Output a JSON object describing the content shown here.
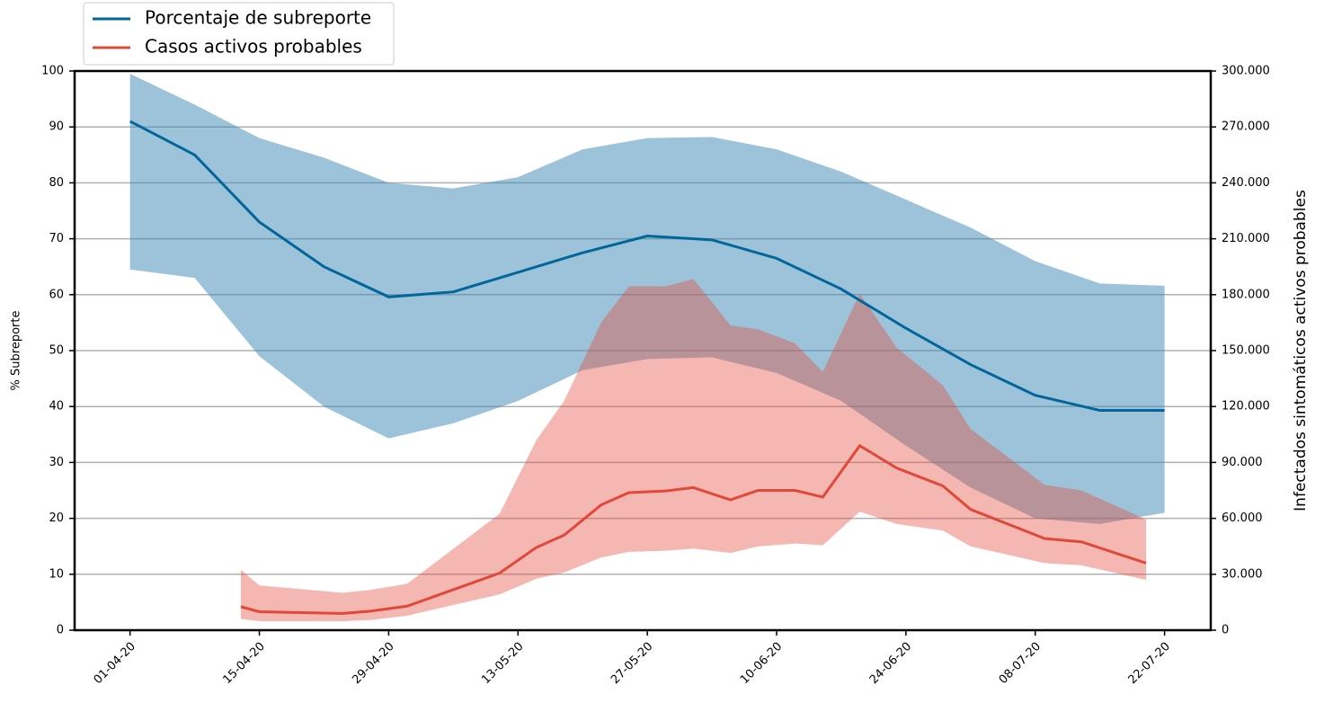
{
  "chart_data": {
    "type": "line-band",
    "y_label": "% Subreporte",
    "y2_label": "Infectados sintomáticos activos probables",
    "xlim": [
      "2020-03-26",
      "2020-07-27"
    ],
    "xticks": [
      {
        "value": "2020-04-01",
        "label": "01-04-20"
      },
      {
        "value": "2020-04-15",
        "label": "15-04-20"
      },
      {
        "value": "2020-04-29",
        "label": "29-04-20"
      },
      {
        "value": "2020-05-13",
        "label": "13-05-20"
      },
      {
        "value": "2020-05-27",
        "label": "27-05-20"
      },
      {
        "value": "2020-06-10",
        "label": "10-06-20"
      },
      {
        "value": "2020-06-24",
        "label": "24-06-20"
      },
      {
        "value": "2020-07-08",
        "label": "08-07-20"
      },
      {
        "value": "2020-07-22",
        "label": "22-07-20"
      }
    ],
    "ylim": [
      0,
      100
    ],
    "yticks": [
      0,
      10,
      20,
      30,
      40,
      50,
      60,
      70,
      80,
      90,
      100
    ],
    "y2lim": [
      0,
      300000
    ],
    "y2ticks": [
      0,
      {
        "value": 30000,
        "label": "30.000"
      },
      {
        "value": 60000,
        "label": "60.000"
      },
      {
        "value": 90000,
        "label": "90.000"
      },
      {
        "value": 120000,
        "label": "120.000"
      },
      {
        "value": 150000,
        "label": "150.000"
      },
      {
        "value": 180000,
        "label": "180.000"
      },
      {
        "value": 210000,
        "label": "210.000"
      },
      {
        "value": 240000,
        "label": "240.000"
      },
      {
        "value": 270000,
        "label": "270.000"
      },
      {
        "value": 300000,
        "label": "300.000"
      }
    ],
    "grid": true,
    "legend": "upper left",
    "series": [
      {
        "name": "Porcentaje de subreporte",
        "color": "#01669a",
        "band_color": "#3a87b3",
        "x": [
          "2020-04-01",
          "2020-04-08",
          "2020-04-15",
          "2020-04-22",
          "2020-04-29",
          "2020-05-06",
          "2020-05-13",
          "2020-05-20",
          "2020-05-27",
          "2020-06-03",
          "2020-06-10",
          "2020-06-17",
          "2020-06-24",
          "2020-07-01",
          "2020-07-08",
          "2020-07-15",
          "2020-07-22"
        ],
        "values": [
          91,
          85,
          73,
          65,
          59.6,
          60.5,
          64,
          67.5,
          70.5,
          69.8,
          66.5,
          61,
          54,
          47.5,
          42,
          39.3,
          39.3
        ],
        "upper": [
          99.5,
          94,
          88,
          84.5,
          80,
          79,
          81,
          86,
          88,
          88.2,
          86,
          82,
          77,
          72,
          66,
          62,
          61.6
        ],
        "lower": [
          64.5,
          63,
          49,
          40,
          34.3,
          37,
          41,
          46.5,
          48.5,
          48.8,
          46,
          41,
          33,
          25.5,
          20,
          19,
          21
        ]
      },
      {
        "name": "Casos activos probables",
        "color": "#e0483a",
        "band_color": "#e54a3c",
        "axis": "y2",
        "x": [
          "2020-04-13",
          "2020-04-15",
          "2020-04-24",
          "2020-04-27",
          "2020-05-01",
          "2020-05-11",
          "2020-05-15",
          "2020-05-18",
          "2020-05-22",
          "2020-05-25",
          "2020-05-29",
          "2020-06-01",
          "2020-06-05",
          "2020-06-08",
          "2020-06-12",
          "2020-06-15",
          "2020-06-19",
          "2020-06-23",
          "2020-06-28",
          "2020-07-01",
          "2020-07-09",
          "2020-07-13",
          "2020-07-20"
        ],
        "values": [
          12600,
          9900,
          9000,
          10200,
          12900,
          30600,
          44400,
          51000,
          67200,
          73800,
          74700,
          76500,
          69900,
          75000,
          75000,
          71400,
          99000,
          87000,
          77400,
          64800,
          49200,
          47400,
          36000
        ],
        "upper": [
          32400,
          24000,
          20100,
          21600,
          24900,
          62400,
          102000,
          123000,
          165000,
          184500,
          184500,
          188400,
          163500,
          161400,
          153900,
          138600,
          180600,
          151500,
          131400,
          108000,
          78000,
          75000,
          59400
        ],
        "lower": [
          6000,
          4800,
          4800,
          5400,
          7800,
          19200,
          27600,
          30900,
          39000,
          42000,
          42600,
          43800,
          41400,
          45000,
          46500,
          45600,
          63600,
          57000,
          53400,
          45000,
          36000,
          34800,
          27000
        ]
      }
    ]
  }
}
